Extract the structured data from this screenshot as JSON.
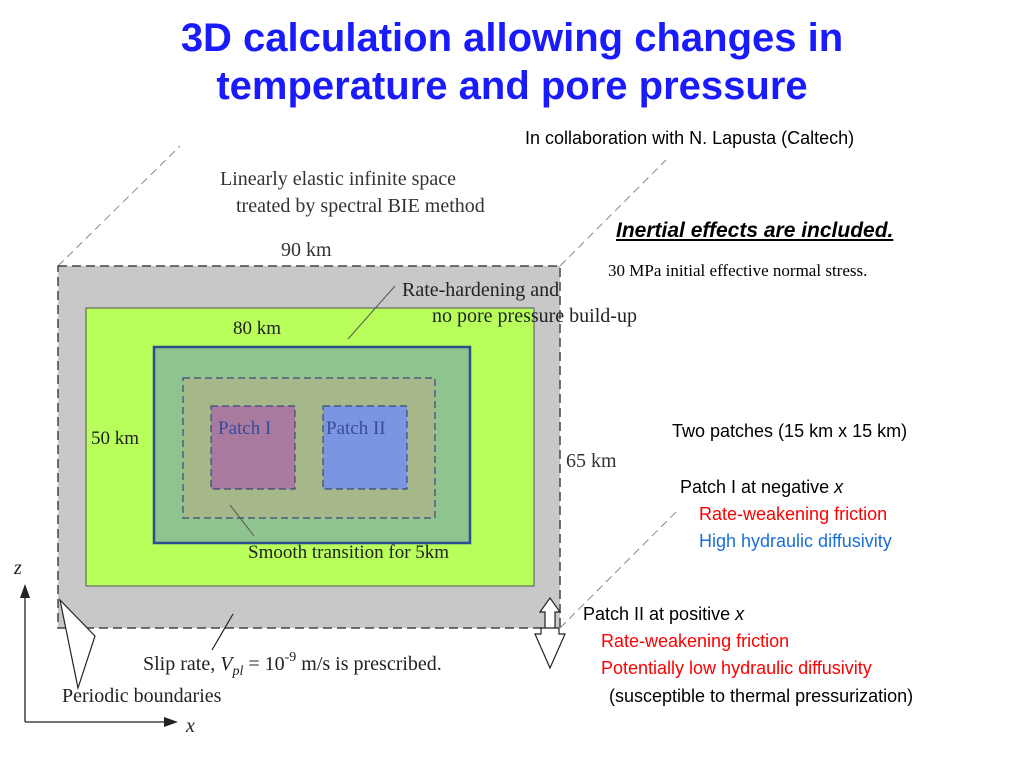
{
  "slide": {
    "title_line1": "3D calculation allowing changes in",
    "title_line2": "temperature and pore pressure",
    "collab": "In collaboration with N. Lapusta (Caltech)",
    "inertial": "Inertial effects are included.",
    "stress": "30 MPa initial effective normal stress."
  },
  "diagram": {
    "space_line1": "Linearly elastic infinite space",
    "space_line2": "treated by spectral BIE method",
    "dim_90": "90 km",
    "dim_80": "80 km",
    "dim_50": "50 km",
    "dim_65": "65 km",
    "rate_hard_line1": "Rate-hardening and",
    "rate_hard_line2": "no pore pressure build-up",
    "patch1": "Patch I",
    "patch2": "Patch II",
    "smooth": "Smooth transition for 5km",
    "slip_prefix": "Slip rate, ",
    "slip_v": "V",
    "slip_sub": "pl",
    "slip_eq": " = 10",
    "slip_exp": "-9",
    "slip_suffix": " m/s is prescribed.",
    "periodic": "Periodic boundaries",
    "axis_z": "z",
    "axis_x": "x"
  },
  "notes": {
    "two_patches": "Two patches (15 km x 15 km)",
    "p1_head": "Patch I  at negative ",
    "p1_var": "x",
    "p1_line1": "Rate-weakening friction",
    "p1_line2": "High hydraulic diffusivity",
    "p2_head": "Patch II  at positive ",
    "p2_var": "x",
    "p2_line1": "Rate-weakening friction",
    "p2_line2": "Potentially low hydraulic diffusivity",
    "p2_line3": "(susceptible to thermal pressurization)"
  },
  "colors": {
    "title": "#1a1aff",
    "outer_region": "#c8c8c8",
    "rate_hardening_region": "#b8ff5c",
    "transition_region": "#8ec48e",
    "patch1": "#a87aa0",
    "patch2": "#7b96e0",
    "rate_weakening_text": "#ff0000",
    "diffusivity_text": "#1a6fd6"
  }
}
